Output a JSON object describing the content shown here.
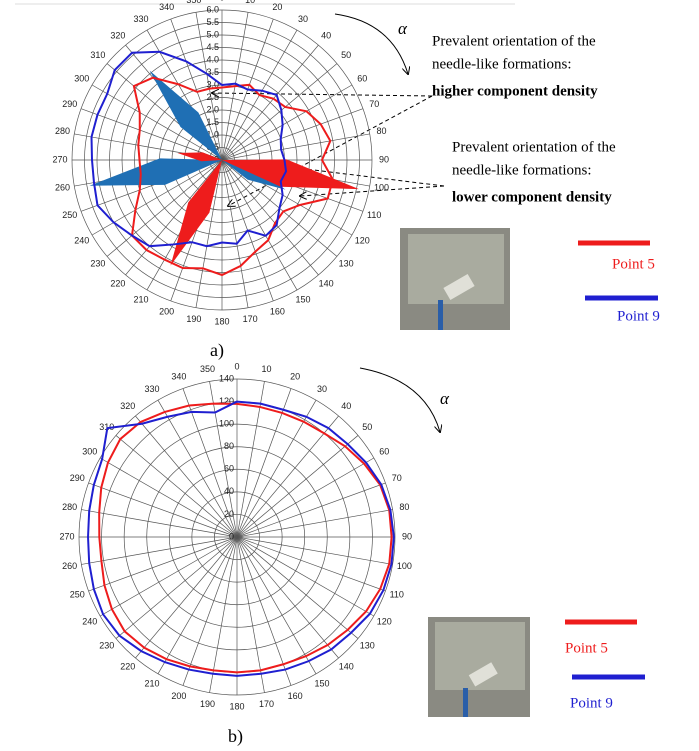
{
  "chart_data": [
    {
      "type": "polar",
      "label": "a)",
      "angles": [
        0,
        10,
        20,
        30,
        40,
        50,
        60,
        70,
        80,
        90,
        100,
        110,
        120,
        130,
        140,
        150,
        160,
        170,
        180,
        190,
        200,
        210,
        220,
        230,
        240,
        250,
        260,
        270,
        280,
        290,
        300,
        310,
        320,
        330,
        340,
        350
      ],
      "ylim": [
        0,
        6
      ],
      "yticks": [
        {
          "value": 0,
          "label": "0.0"
        },
        {
          "value": 0.5,
          "label": "0.5"
        },
        {
          "value": 1,
          "label": "1.0"
        },
        {
          "value": 1.5,
          "label": "1.5"
        },
        {
          "value": 2,
          "label": "2.0"
        },
        {
          "value": 2.5,
          "label": "2.5"
        },
        {
          "value": 3,
          "label": "3.0"
        },
        {
          "value": 3.5,
          "label": "3.5"
        },
        {
          "value": 4,
          "label": "4.0"
        },
        {
          "value": 4.5,
          "label": "4.5"
        },
        {
          "value": 5,
          "label": "5.0"
        },
        {
          "value": 5.5,
          "label": "5.5"
        },
        {
          "value": 6,
          "label": "6.0"
        }
      ],
      "series": [
        {
          "name": "Point 5",
          "color": "#ee1c1c",
          "values": [
            2.9,
            3.0,
            3.2,
            3.0,
            3.2,
            3.3,
            3.9,
            4.2,
            4.4,
            4.0,
            4.5,
            4.5,
            3.6,
            3.2,
            3.3,
            3.7,
            3.9,
            4.3,
            4.6,
            4.4,
            4.6,
            4.6,
            4.7,
            4.7,
            4.0,
            3.5,
            3.3,
            3.3,
            3.4,
            3.5,
            3.8,
            4.6,
            4.3,
            3.5,
            2.9,
            2.9
          ]
        },
        {
          "name": "Point 9",
          "color": "#1f1fd0",
          "values": [
            3.0,
            3.1,
            3.0,
            3.2,
            3.4,
            3.1,
            2.8,
            2.5,
            2.4,
            2.5,
            2.6,
            2.5,
            2.8,
            3.0,
            3.4,
            3.5,
            3.0,
            3.4,
            3.3,
            3.5,
            3.5,
            3.9,
            4.5,
            4.7,
            5.0,
            5.3,
            5.2,
            5.2,
            5.3,
            5.3,
            5.3,
            5.6,
            5.6,
            5.0,
            4.2,
            3.5
          ]
        }
      ],
      "rose": [
        {
          "color": "#1f6fb4",
          "angle": 321,
          "length": 4.6
        },
        {
          "color": "#1f6fb4",
          "angle": 259,
          "length": 5.4
        },
        {
          "color": "#1f6fb4",
          "angle": 115,
          "length": 2.8
        },
        {
          "color": "#ee1c1c",
          "angle": 206,
          "length": 4.7
        },
        {
          "color": "#ee1c1c",
          "angle": 279,
          "length": 1.8
        },
        {
          "color": "#ee1c1c",
          "angle": 102,
          "length": 5.6
        }
      ],
      "direction_label": "α",
      "annotations": [
        {
          "lines": [
            "Prevalent orientation of the",
            "needle-like formations:"
          ],
          "emphasis": "higher component density"
        },
        {
          "lines": [
            "Prevalent orientation of the",
            "needle-like formations:"
          ],
          "emphasis": "lower component density"
        }
      ]
    },
    {
      "type": "polar",
      "label": "b)",
      "angles": [
        0,
        10,
        20,
        30,
        40,
        50,
        60,
        70,
        80,
        90,
        100,
        110,
        120,
        130,
        140,
        150,
        160,
        170,
        180,
        190,
        200,
        210,
        220,
        230,
        240,
        250,
        260,
        270,
        280,
        290,
        300,
        310,
        320,
        330,
        340,
        350
      ],
      "ylim": [
        0,
        140
      ],
      "yticks": [
        0,
        20,
        40,
        60,
        80,
        100,
        120,
        140
      ],
      "series": [
        {
          "name": "Point 5",
          "color": "#ee1c1c",
          "values": [
            118,
            117,
            117,
            118,
            120,
            125,
            130,
            135,
            137,
            137,
            137,
            135,
            132,
            128,
            125,
            122,
            120,
            120,
            120,
            120,
            122,
            125,
            128,
            130,
            128,
            125,
            122,
            122,
            124,
            128,
            132,
            135,
            133,
            128,
            124,
            120
          ]
        },
        {
          "name": "Point 9",
          "color": "#1f1fd0",
          "values": [
            120,
            120,
            120,
            123,
            126,
            128,
            132,
            136,
            138,
            139,
            139,
            138,
            136,
            132,
            130,
            127,
            125,
            123,
            123,
            123,
            125,
            128,
            132,
            136,
            137,
            135,
            133,
            132,
            133,
            135,
            138,
            150,
            131,
            123,
            118,
            112
          ]
        }
      ],
      "direction_label": "α"
    }
  ]
}
